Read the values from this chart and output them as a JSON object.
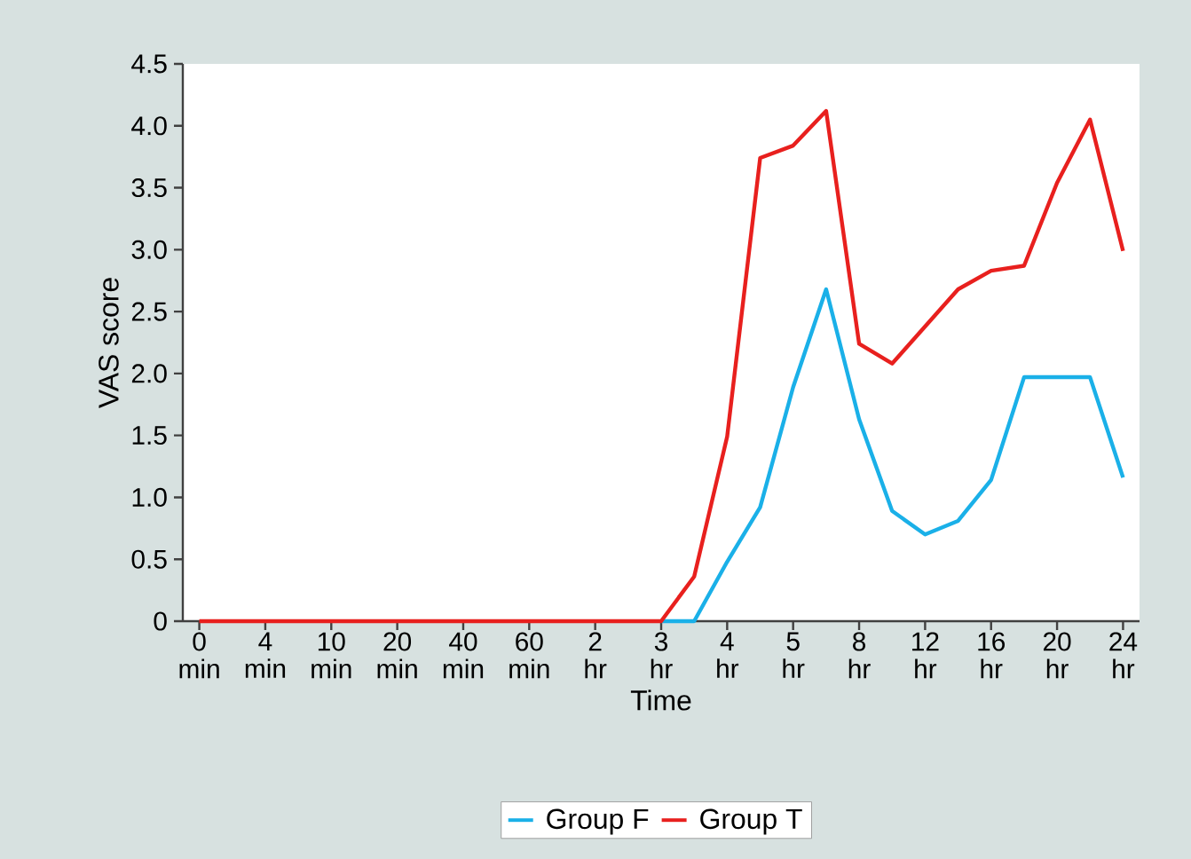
{
  "chart_data": {
    "type": "line",
    "xlabel": "Time",
    "ylabel": "VAS score",
    "categories": [
      "0 min",
      null,
      "4 min",
      null,
      "10 min",
      null,
      "20 min",
      null,
      "40 min",
      null,
      "60 min",
      null,
      "2 hr",
      null,
      "3 hr",
      null,
      "4 hr",
      null,
      "5 hr",
      null,
      "8 hr",
      null,
      "12 hr",
      null,
      "16 hr",
      null,
      "20 hr",
      null,
      "24 hr"
    ],
    "ylim": [
      0,
      4.5
    ],
    "yticks": [
      0,
      0.5,
      {
        "value": 1,
        "label": "1.0"
      },
      1.5,
      {
        "value": 2,
        "label": "2.0"
      },
      2.5,
      {
        "value": 3,
        "label": "3.0"
      },
      3.5,
      {
        "value": 4,
        "label": "4.0"
      },
      4.5
    ],
    "series": [
      {
        "name": "Group F",
        "color": "#1ab0e8",
        "values": [
          null,
          null,
          null,
          null,
          null,
          null,
          null,
          null,
          null,
          null,
          null,
          null,
          null,
          null,
          0,
          0,
          0.48,
          0.92,
          1.89,
          2.68,
          1.63,
          0.89,
          0.7,
          0.81,
          1.14,
          1.97,
          1.97,
          1.97,
          1.16
        ]
      },
      {
        "name": "Group T",
        "color": "#e8201e",
        "values": [
          0,
          0,
          0,
          0,
          0,
          0,
          0,
          0,
          0,
          0,
          0,
          0,
          0,
          0,
          0,
          0.36,
          1.49,
          3.74,
          3.84,
          4.12,
          2.24,
          2.08,
          2.38,
          2.68,
          2.83,
          2.87,
          3.54,
          4.05,
          2.99
        ]
      }
    ],
    "legend": "bottom",
    "line_style": "solid",
    "grid": false
  }
}
